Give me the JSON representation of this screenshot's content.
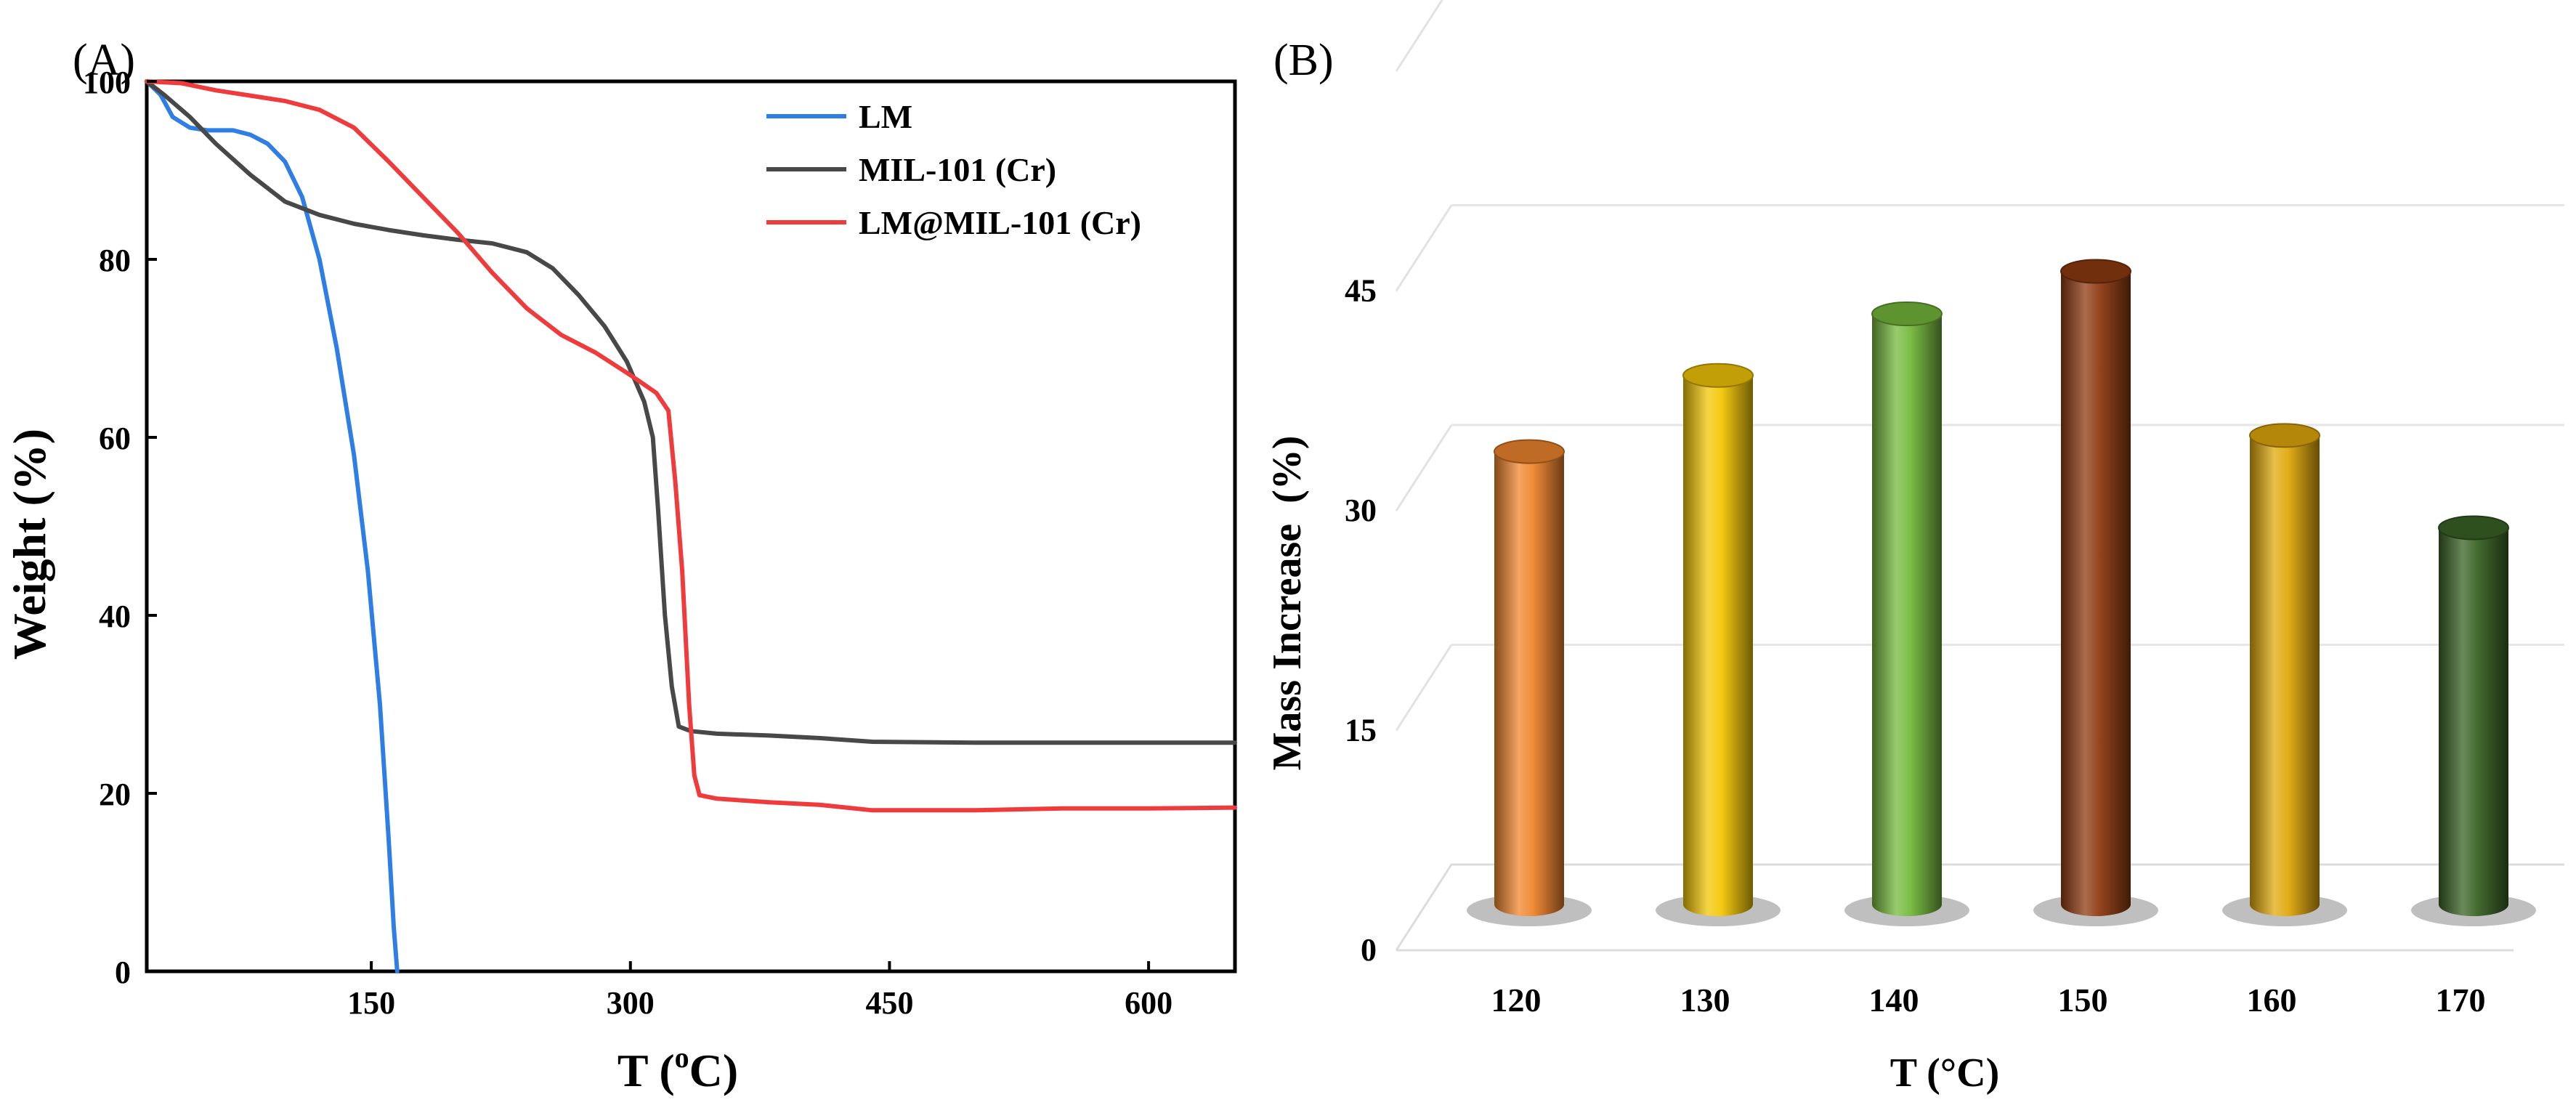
{
  "chart_data": [
    {
      "panel_label": "(A)",
      "type": "line",
      "xlabel_main": "T (",
      "xlabel_sup": "o",
      "xlabel_end": "C)",
      "ylabel": "Weight (%)",
      "xlim": [
        20,
        650
      ],
      "ylim": [
        0,
        100
      ],
      "xticks": [
        150,
        300,
        450,
        600
      ],
      "yticks": [
        0,
        20,
        40,
        60,
        80,
        100
      ],
      "legend_position": "top-right",
      "series": [
        {
          "name": "LM",
          "color": "#2e7ee6",
          "points": [
            [
              20,
              100
            ],
            [
              28,
              98.5
            ],
            [
              35,
              96
            ],
            [
              45,
              94.8
            ],
            [
              55,
              94.5
            ],
            [
              70,
              94.5
            ],
            [
              80,
              94
            ],
            [
              90,
              93
            ],
            [
              100,
              91
            ],
            [
              110,
              87
            ],
            [
              120,
              80
            ],
            [
              130,
              70
            ],
            [
              140,
              58
            ],
            [
              148,
              45
            ],
            [
              155,
              30
            ],
            [
              160,
              15
            ],
            [
              163,
              5
            ],
            [
              165,
              0
            ]
          ]
        },
        {
          "name": "MIL-101 (Cr)",
          "color": "#484848",
          "points": [
            [
              20,
              100
            ],
            [
              30,
              98.5
            ],
            [
              45,
              96
            ],
            [
              60,
              93
            ],
            [
              80,
              89.5
            ],
            [
              100,
              86.5
            ],
            [
              120,
              85
            ],
            [
              140,
              84
            ],
            [
              160,
              83.3
            ],
            [
              180,
              82.7
            ],
            [
              200,
              82.2
            ],
            [
              220,
              81.8
            ],
            [
              240,
              80.8
            ],
            [
              255,
              79
            ],
            [
              270,
              76
            ],
            [
              285,
              72.5
            ],
            [
              298,
              68.5
            ],
            [
              308,
              64
            ],
            [
              313,
              60
            ],
            [
              316,
              52
            ],
            [
              320,
              40
            ],
            [
              324,
              32
            ],
            [
              328,
              27.5
            ],
            [
              335,
              27
            ],
            [
              350,
              26.7
            ],
            [
              380,
              26.5
            ],
            [
              410,
              26.2
            ],
            [
              440,
              25.8
            ],
            [
              500,
              25.7
            ],
            [
              550,
              25.7
            ],
            [
              600,
              25.7
            ],
            [
              650,
              25.7
            ]
          ]
        },
        {
          "name": "LM@MIL-101 (Cr)",
          "color": "#ef3b3b",
          "points": [
            [
              20,
              100
            ],
            [
              40,
              99.8
            ],
            [
              60,
              99
            ],
            [
              80,
              98.4
            ],
            [
              100,
              97.8
            ],
            [
              120,
              96.8
            ],
            [
              140,
              94.8
            ],
            [
              160,
              91
            ],
            [
              180,
              87
            ],
            [
              200,
              83
            ],
            [
              220,
              78.5
            ],
            [
              240,
              74.5
            ],
            [
              260,
              71.5
            ],
            [
              280,
              69.5
            ],
            [
              300,
              67
            ],
            [
              315,
              65
            ],
            [
              322,
              63
            ],
            [
              326,
              55
            ],
            [
              330,
              45
            ],
            [
              334,
              30
            ],
            [
              337,
              22
            ],
            [
              340,
              19.8
            ],
            [
              350,
              19.4
            ],
            [
              380,
              19
            ],
            [
              410,
              18.7
            ],
            [
              440,
              18.1
            ],
            [
              500,
              18.1
            ],
            [
              550,
              18.3
            ],
            [
              600,
              18.3
            ],
            [
              650,
              18.4
            ]
          ]
        }
      ]
    },
    {
      "panel_label": "(B)",
      "type": "bar",
      "xlabel": "T (°C)",
      "ylabel": "Mass Increase  (%)",
      "ylim": [
        0,
        60
      ],
      "yticks": [
        0,
        15,
        30,
        45
      ],
      "categories": [
        "120",
        "130",
        "140",
        "150",
        "160",
        "170"
      ],
      "values": [
        33.5,
        38.7,
        42.9,
        45.8,
        34.6,
        28.3
      ],
      "colors": [
        "#f0862e",
        "#f3c707",
        "#75b93c",
        "#8f3b12",
        "#e1a90c",
        "#3a6325"
      ]
    }
  ]
}
